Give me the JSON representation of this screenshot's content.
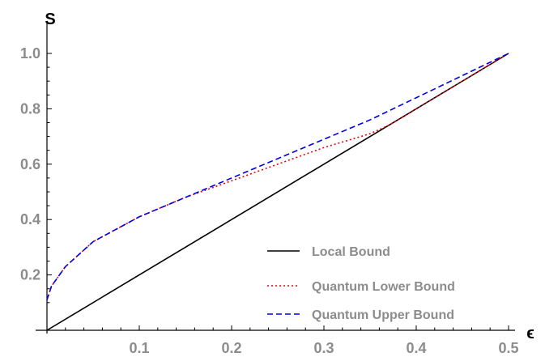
{
  "chart_data": {
    "type": "line",
    "title": "",
    "xlabel": "ϵ",
    "ylabel": "S",
    "xlim": [
      0,
      0.5
    ],
    "ylim": [
      0.1,
      1.0
    ],
    "x_ticks": [
      "0.1",
      "0.2",
      "0.3",
      "0.4",
      "0.5"
    ],
    "y_ticks": [
      "0.2",
      "0.4",
      "0.6",
      "0.8",
      "1.0"
    ],
    "legend_position": "bottom-right",
    "grid": false,
    "series": [
      {
        "name": "Local Bound",
        "color": "#000000",
        "style": "solid",
        "x": [
          0,
          0.1,
          0.2,
          0.3,
          0.37,
          0.4,
          0.5
        ],
        "y": [
          0.0,
          0.2,
          0.4,
          0.6,
          0.74,
          0.8,
          1.0
        ]
      },
      {
        "name": "Quantum Lower Bound",
        "color": "#e8000b",
        "style": "dotted",
        "x": [
          0.0,
          0.005,
          0.02,
          0.05,
          0.1,
          0.15,
          0.2,
          0.25,
          0.3,
          0.35,
          0.37,
          0.4,
          0.45,
          0.5
        ],
        "y": [
          0.11,
          0.16,
          0.23,
          0.32,
          0.41,
          0.48,
          0.54,
          0.6,
          0.66,
          0.71,
          0.74,
          0.8,
          0.9,
          1.0
        ]
      },
      {
        "name": "Quantum Upper Bound",
        "color": "#0000e0",
        "style": "dashed",
        "x": [
          0.0,
          0.005,
          0.02,
          0.05,
          0.1,
          0.15,
          0.2,
          0.25,
          0.3,
          0.35,
          0.4,
          0.45,
          0.5
        ],
        "y": [
          0.11,
          0.16,
          0.23,
          0.32,
          0.41,
          0.48,
          0.55,
          0.62,
          0.69,
          0.76,
          0.84,
          0.92,
          1.0
        ]
      }
    ]
  }
}
